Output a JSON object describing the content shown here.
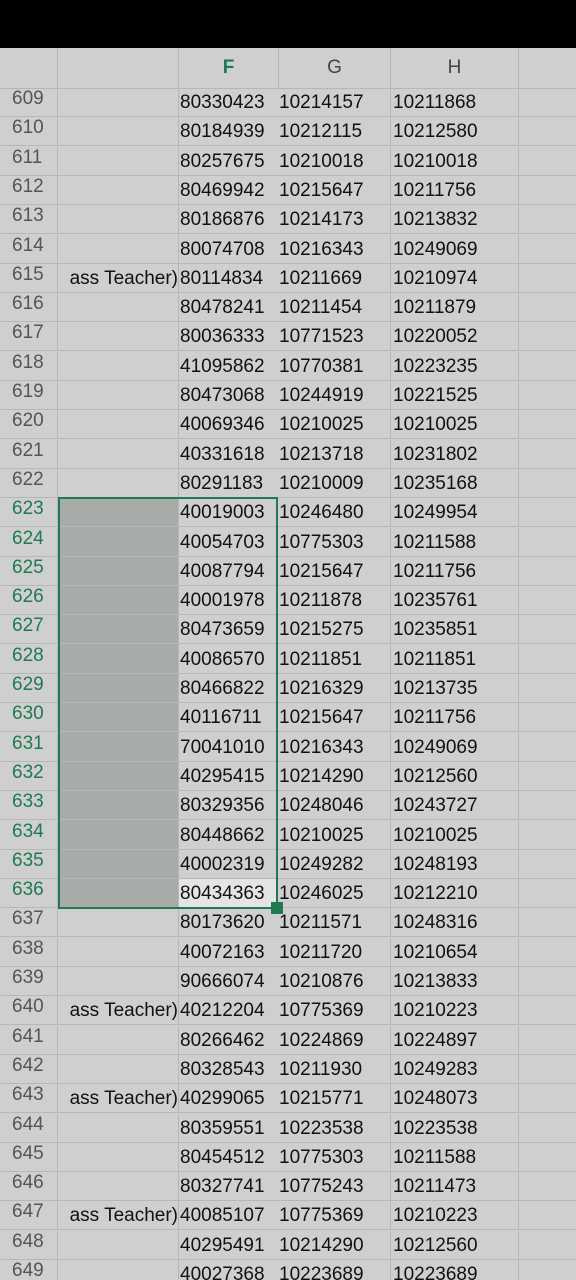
{
  "columns": {
    "F": "F",
    "G": "G",
    "H": "H"
  },
  "selection": {
    "start_row": "623",
    "end_row": "636",
    "columns": [
      "E",
      "F"
    ]
  },
  "rows": [
    {
      "n": "609",
      "e": "",
      "f": "80330423",
      "g": "10214157",
      "h": "10211868"
    },
    {
      "n": "610",
      "e": "",
      "f": "80184939",
      "g": "10212115",
      "h": "10212580"
    },
    {
      "n": "611",
      "e": "",
      "f": "80257675",
      "g": "10210018",
      "h": "10210018"
    },
    {
      "n": "612",
      "e": "",
      "f": "80469942",
      "g": "10215647",
      "h": "10211756"
    },
    {
      "n": "613",
      "e": "",
      "f": "80186876",
      "g": "10214173",
      "h": "10213832"
    },
    {
      "n": "614",
      "e": "",
      "f": "80074708",
      "g": "10216343",
      "h": "10249069"
    },
    {
      "n": "615",
      "e": "ass Teacher)",
      "f": "80114834",
      "g": "10211669",
      "h": "10210974"
    },
    {
      "n": "616",
      "e": "",
      "f": "80478241",
      "g": "10211454",
      "h": "10211879"
    },
    {
      "n": "617",
      "e": "",
      "f": "80036333",
      "g": "10771523",
      "h": "10220052"
    },
    {
      "n": "618",
      "e": "",
      "f": "41095862",
      "g": "10770381",
      "h": "10223235"
    },
    {
      "n": "619",
      "e": "",
      "f": "80473068",
      "g": "10244919",
      "h": "10221525"
    },
    {
      "n": "620",
      "e": "",
      "f": "40069346",
      "g": "10210025",
      "h": "10210025"
    },
    {
      "n": "621",
      "e": "",
      "f": "40331618",
      "g": "10213718",
      "h": "10231802"
    },
    {
      "n": "622",
      "e": "",
      "f": "80291183",
      "g": "10210009",
      "h": "10235168"
    },
    {
      "n": "623",
      "e": "",
      "f": "40019003",
      "g": "10246480",
      "h": "10249954"
    },
    {
      "n": "624",
      "e": "",
      "f": "40054703",
      "g": "10775303",
      "h": "10211588"
    },
    {
      "n": "625",
      "e": "",
      "f": "40087794",
      "g": "10215647",
      "h": "10211756"
    },
    {
      "n": "626",
      "e": "",
      "f": "40001978",
      "g": "10211878",
      "h": "10235761"
    },
    {
      "n": "627",
      "e": "",
      "f": "80473659",
      "g": "10215275",
      "h": "10235851"
    },
    {
      "n": "628",
      "e": "",
      "f": "40086570",
      "g": "10211851",
      "h": "10211851"
    },
    {
      "n": "629",
      "e": "",
      "f": "80466822",
      "g": "10216329",
      "h": "10213735"
    },
    {
      "n": "630",
      "e": "",
      "f": "40116711",
      "g": "10215647",
      "h": "10211756"
    },
    {
      "n": "631",
      "e": "",
      "f": "70041010",
      "g": "10216343",
      "h": "10249069"
    },
    {
      "n": "632",
      "e": "",
      "f": "40295415",
      "g": "10214290",
      "h": "10212560"
    },
    {
      "n": "633",
      "e": "",
      "f": "80329356",
      "g": "10248046",
      "h": "10243727"
    },
    {
      "n": "634",
      "e": "",
      "f": "80448662",
      "g": "10210025",
      "h": "10210025"
    },
    {
      "n": "635",
      "e": "",
      "f": "40002319",
      "g": "10249282",
      "h": "10248193"
    },
    {
      "n": "636",
      "e": "",
      "f": "80434363",
      "g": "10246025",
      "h": "10212210"
    },
    {
      "n": "637",
      "e": "",
      "f": "80173620",
      "g": "10211571",
      "h": "10248316"
    },
    {
      "n": "638",
      "e": "",
      "f": "40072163",
      "g": "10211720",
      "h": "10210654"
    },
    {
      "n": "639",
      "e": "",
      "f": "90666074",
      "g": "10210876",
      "h": "10213833"
    },
    {
      "n": "640",
      "e": "ass Teacher)",
      "f": "40212204",
      "g": "10775369",
      "h": "10210223"
    },
    {
      "n": "641",
      "e": "",
      "f": "80266462",
      "g": "10224869",
      "h": "10224897"
    },
    {
      "n": "642",
      "e": "",
      "f": "80328543",
      "g": "10211930",
      "h": "10249283"
    },
    {
      "n": "643",
      "e": "ass Teacher)",
      "f": "40299065",
      "g": "10215771",
      "h": "10248073"
    },
    {
      "n": "644",
      "e": "",
      "f": "80359551",
      "g": "10223538",
      "h": "10223538"
    },
    {
      "n": "645",
      "e": "",
      "f": "80454512",
      "g": "10775303",
      "h": "10211588"
    },
    {
      "n": "646",
      "e": "",
      "f": "80327741",
      "g": "10775243",
      "h": "10211473"
    },
    {
      "n": "647",
      "e": "ass Teacher)",
      "f": "40085107",
      "g": "10775369",
      "h": "10210223"
    },
    {
      "n": "648",
      "e": "",
      "f": "40295491",
      "g": "10214290",
      "h": "10212560"
    },
    {
      "n": "649",
      "e": "",
      "f": "40027368",
      "g": "10223689",
      "h": "10223689"
    }
  ]
}
